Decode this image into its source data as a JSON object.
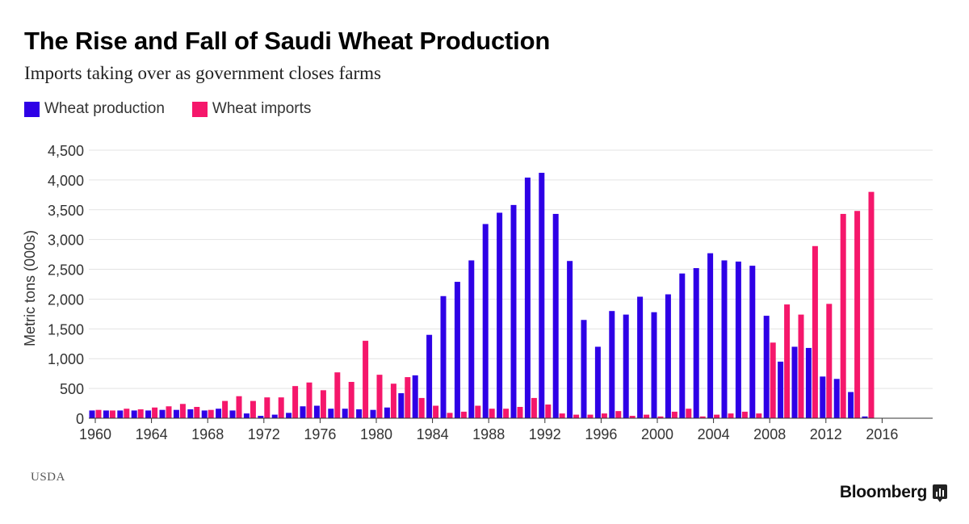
{
  "chart_data": {
    "type": "bar",
    "title": "The Rise and Fall of Saudi Wheat Production",
    "subtitle": "Imports taking over as government closes farms",
    "ylabel": "Metric tons (000s)",
    "xlabel": "",
    "ylim": [
      0,
      4500
    ],
    "yticks": [
      "0",
      "500",
      "1,000",
      "1,500",
      "2,000",
      "2,500",
      "3,000",
      "3,500",
      "4,000",
      "4,500"
    ],
    "ytick_values": [
      0,
      500,
      1000,
      1500,
      2000,
      2500,
      3000,
      3500,
      4000,
      4500
    ],
    "xticks": [
      "1960",
      "1964",
      "1968",
      "1972",
      "1976",
      "1980",
      "1984",
      "1988",
      "1992",
      "1996",
      "2000",
      "2004",
      "2008",
      "2012",
      "2016"
    ],
    "xtick_values": [
      1960,
      1964,
      1968,
      1972,
      1976,
      1980,
      1984,
      1988,
      1992,
      1996,
      2000,
      2004,
      2008,
      2012,
      2016
    ],
    "grid": true,
    "legend_position": "top-left",
    "categories": [
      1960,
      1961,
      1962,
      1963,
      1964,
      1965,
      1966,
      1967,
      1968,
      1969,
      1970,
      1971,
      1972,
      1973,
      1974,
      1975,
      1976,
      1977,
      1978,
      1979,
      1980,
      1981,
      1982,
      1983,
      1984,
      1985,
      1986,
      1987,
      1988,
      1989,
      1990,
      1991,
      1992,
      1993,
      1994,
      1995,
      1996,
      1997,
      1998,
      1999,
      2000,
      2001,
      2002,
      2003,
      2004,
      2005,
      2006,
      2007,
      2008,
      2009,
      2010,
      2011,
      2012,
      2013,
      2014,
      2015
    ],
    "series": [
      {
        "name": "Wheat production",
        "color": "#2e00e6",
        "values": [
          130,
          130,
          130,
          130,
          130,
          140,
          140,
          150,
          130,
          160,
          130,
          80,
          40,
          60,
          90,
          200,
          210,
          160,
          160,
          150,
          140,
          180,
          420,
          720,
          1400,
          2050,
          2290,
          2650,
          3260,
          3450,
          3580,
          4040,
          4120,
          3430,
          2640,
          1650,
          1200,
          1800,
          1740,
          2040,
          1780,
          2080,
          2430,
          2520,
          2770,
          2650,
          2630,
          2560,
          1720,
          950,
          1200,
          1180,
          700,
          660,
          440,
          30
        ],
        "bind_key": "production"
      },
      {
        "name": "Wheat imports",
        "color": "#f5176b",
        "values": [
          140,
          130,
          160,
          150,
          180,
          200,
          240,
          190,
          140,
          290,
          370,
          290,
          350,
          350,
          540,
          600,
          470,
          770,
          610,
          1300,
          730,
          580,
          690,
          340,
          210,
          90,
          110,
          210,
          160,
          160,
          190,
          340,
          230,
          80,
          60,
          60,
          80,
          120,
          40,
          60,
          30,
          110,
          160,
          30,
          60,
          80,
          110,
          80,
          1270,
          1910,
          1740,
          2890,
          1920,
          3430,
          3480,
          3800
        ],
        "bind_key": "imports"
      }
    ]
  },
  "legend": {
    "production_label": "Wheat production",
    "imports_label": "Wheat imports"
  },
  "source": "USDA",
  "brand": "Bloomberg",
  "colors": {
    "production": "#2e00e6",
    "imports": "#f5176b",
    "grid": "#e3e3e3",
    "axis_text": "#333333"
  }
}
